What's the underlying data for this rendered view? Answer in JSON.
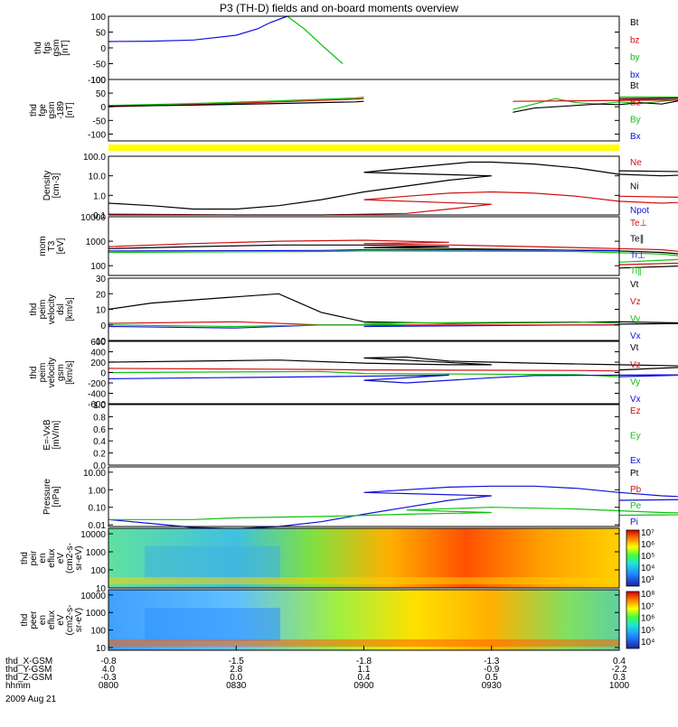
{
  "title": "P3 (TH-D) fields and on-board moments overview",
  "colors": {
    "black": "#000000",
    "red": "#d01010",
    "green": "#10c010",
    "blue": "#1010e0",
    "yellow": "#ffff00"
  },
  "chart_data": [
    {
      "type": "line",
      "id": "fgs",
      "ylabel": [
        "thd",
        "fgs",
        "gsm",
        "[nT]"
      ],
      "ylim": [
        -100,
        100
      ],
      "yticks": [
        "100",
        "50",
        "0",
        "-50",
        "-100"
      ],
      "legend": [
        {
          "label": "Bt",
          "color": "#000000"
        },
        {
          "label": "bz",
          "color": "#d01010"
        },
        {
          "label": "by",
          "color": "#10c010"
        },
        {
          "label": "bx",
          "color": "#1010e0"
        }
      ],
      "series": [
        {
          "color": "#1010e0",
          "x": [
            800,
            810,
            820,
            830,
            835,
            838,
            842
          ],
          "y": [
            20,
            21,
            25,
            40,
            60,
            80,
            100
          ]
        },
        {
          "color": "#10c010",
          "x": [
            842,
            846,
            850,
            855
          ],
          "y": [
            100,
            60,
            10,
            -50
          ]
        }
      ]
    },
    {
      "type": "line",
      "id": "fge",
      "ylabel": [
        "thd",
        "fge",
        "gsm",
        "-189",
        "[nT]"
      ],
      "ylim": [
        -125,
        100
      ],
      "yticks": [
        "100",
        "50",
        "0",
        "-50",
        "-100"
      ],
      "legend": [
        {
          "label": "Bt",
          "color": "#000000"
        },
        {
          "label": "Bz",
          "color": "#d01010"
        },
        {
          "label": "By",
          "color": "#10c010"
        },
        {
          "label": "Bx",
          "color": "#1010e0"
        }
      ],
      "series": [
        {
          "color": "#10c010",
          "x": [
            800,
            820,
            840,
            858,
            860
          ],
          "y": [
            5,
            12,
            22,
            32,
            35
          ]
        },
        {
          "color": "#d01010",
          "x": [
            800,
            820,
            840,
            858,
            860
          ],
          "y": [
            0,
            8,
            18,
            28,
            30
          ]
        },
        {
          "color": "#000000",
          "x": [
            800,
            820,
            840,
            858,
            860
          ],
          "y": [
            2,
            6,
            12,
            18,
            20
          ]
        },
        {
          "color": "#10c010",
          "x": [
            935,
            940,
            945,
            950,
            955,
            960,
            965,
            970,
            975,
            980,
            985,
            990,
            995,
            1000
          ],
          "y": [
            -10,
            10,
            30,
            15,
            10,
            18,
            12,
            20,
            28,
            40,
            30,
            38,
            35,
            36
          ]
        },
        {
          "color": "#000000",
          "x": [
            935,
            940,
            945,
            950,
            955,
            960,
            965,
            970,
            975,
            980,
            985,
            990,
            995,
            1000
          ],
          "y": [
            -20,
            -5,
            0,
            5,
            10,
            8,
            15,
            10,
            25,
            18,
            30,
            40,
            35,
            30
          ]
        },
        {
          "color": "#d01010",
          "x": [
            935,
            950,
            965,
            980,
            1000
          ],
          "y": [
            20,
            22,
            24,
            26,
            28
          ]
        }
      ]
    },
    {
      "type": "line",
      "id": "density",
      "yscale": "log",
      "ylabel": [
        "Density",
        "[cm-3]"
      ],
      "ylim": [
        0.1,
        100
      ],
      "yticks": [
        "100.0",
        "10.0",
        "1.0",
        "0.1"
      ],
      "legend": [
        {
          "label": "Ne",
          "color": "#d01010"
        },
        {
          "label": "Ni",
          "color": "#000000"
        },
        {
          "label": "Npot",
          "color": "#1010e0"
        }
      ],
      "series": [
        {
          "color": "#000000",
          "x": [
            800,
            810,
            820,
            830,
            840,
            850,
            860,
            870,
            880,
            890,
            900,
            910,
            920,
            925,
            930,
            940,
            950,
            960,
            970,
            980,
            990,
            1000
          ],
          "y": [
            0.4,
            0.3,
            0.2,
            0.2,
            0.3,
            0.6,
            1.5,
            3,
            6,
            10,
            15,
            25,
            40,
            50,
            50,
            40,
            25,
            12,
            10,
            12,
            15,
            18
          ]
        },
        {
          "color": "#d01010",
          "x": [
            800,
            830,
            850,
            870,
            880,
            890,
            900,
            910,
            920,
            930,
            940,
            950,
            960,
            970,
            980,
            990,
            1000
          ],
          "y": [
            0.11,
            0.1,
            0.1,
            0.12,
            0.2,
            0.35,
            0.6,
            0.9,
            1.3,
            1.5,
            1.3,
            0.9,
            0.5,
            0.4,
            0.5,
            0.7,
            0.9
          ]
        }
      ]
    },
    {
      "type": "line",
      "id": "temp",
      "yscale": "log",
      "ylabel": [
        "mom",
        "T3",
        "[eV]"
      ],
      "ylim": [
        40,
        10000
      ],
      "yticks": [
        "10000",
        "1000",
        "100"
      ],
      "ytickvals": [
        10000,
        1000,
        100
      ],
      "legend": [
        {
          "label": "Te⊥",
          "color": "#d01010"
        },
        {
          "label": "Te∥",
          "color": "#000000"
        },
        {
          "label": "Ti⊥",
          "color": "#1010e0"
        },
        {
          "label": "Ti∥",
          "color": "#10c010"
        }
      ],
      "series": [
        {
          "color": "#d01010",
          "x": [
            800,
            820,
            840,
            860,
            880,
            900,
            920,
            940,
            960,
            970,
            980,
            990,
            1000
          ],
          "y": [
            600,
            800,
            1000,
            1100,
            900,
            800,
            700,
            600,
            500,
            450,
            300,
            150,
            110
          ]
        },
        {
          "color": "#000000",
          "x": [
            800,
            820,
            840,
            860,
            880,
            900,
            920,
            940,
            960,
            970,
            980,
            990,
            1000
          ],
          "y": [
            500,
            600,
            700,
            700,
            600,
            550,
            500,
            450,
            400,
            350,
            250,
            120,
            80
          ]
        },
        {
          "color": "#1010e0",
          "x": [
            800,
            850,
            900,
            950,
            1000
          ],
          "y": [
            400,
            420,
            450,
            430,
            420
          ]
        },
        {
          "color": "#10c010",
          "x": [
            800,
            850,
            900,
            950,
            970,
            980,
            1000
          ],
          "y": [
            350,
            380,
            400,
            380,
            300,
            200,
            140
          ]
        }
      ]
    },
    {
      "type": "line",
      "id": "velocity_dsl",
      "ylabel": [
        "thd",
        "peim",
        "velocity",
        "dsl",
        "[km/s]"
      ],
      "ylim": [
        -10,
        30
      ],
      "yticks": [
        "30",
        "20",
        "10",
        "0",
        "-10"
      ],
      "legend": [
        {
          "label": "Vt",
          "color": "#000000"
        },
        {
          "label": "Vz",
          "color": "#d01010"
        },
        {
          "label": "Vy",
          "color": "#10c010"
        },
        {
          "label": "Vx",
          "color": "#1010e0"
        }
      ],
      "series": [
        {
          "color": "#000000",
          "x": [
            800,
            810,
            820,
            830,
            840,
            850,
            860,
            880,
            900,
            920,
            940,
            960,
            980,
            1000
          ],
          "y": [
            10,
            14,
            16,
            18,
            20,
            8,
            2,
            1,
            2,
            1,
            1.5,
            2,
            1,
            0.5
          ]
        },
        {
          "color": "#1010e0",
          "x": [
            800,
            830,
            850,
            870,
            900,
            950,
            1000
          ],
          "y": [
            -1,
            -2,
            0,
            0,
            -1,
            0,
            0
          ]
        },
        {
          "color": "#d01010",
          "x": [
            800,
            830,
            850,
            870,
            900,
            950,
            1000
          ],
          "y": [
            1,
            2,
            0,
            0,
            0,
            0,
            0
          ]
        },
        {
          "color": "#10c010",
          "x": [
            800,
            830,
            850,
            870,
            900,
            950,
            1000
          ],
          "y": [
            0,
            -1,
            0,
            0,
            1,
            2,
            1
          ]
        }
      ]
    },
    {
      "type": "line",
      "id": "velocity_gsm",
      "ylabel": [
        "thd",
        "peim",
        "velocity",
        "gsm",
        "[km/s]"
      ],
      "ylim": [
        -600,
        600
      ],
      "yticks": [
        "600",
        "400",
        "200",
        "0",
        "-200",
        "-400",
        "-600"
      ],
      "legend": [
        {
          "label": "Vt",
          "color": "#000000"
        },
        {
          "label": "Vz",
          "color": "#d01010"
        },
        {
          "label": "Vy",
          "color": "#10c010"
        },
        {
          "label": "Vx",
          "color": "#1010e0"
        }
      ],
      "series": [
        {
          "color": "#000000",
          "x": [
            800,
            820,
            840,
            860,
            880,
            890,
            900,
            910,
            920,
            930,
            940,
            960,
            980,
            1000
          ],
          "y": [
            200,
            220,
            240,
            180,
            150,
            150,
            280,
            300,
            220,
            200,
            180,
            150,
            120,
            50
          ]
        },
        {
          "color": "#d01010",
          "x": [
            800,
            850,
            900,
            950,
            1000
          ],
          "y": [
            80,
            60,
            50,
            40,
            30
          ]
        },
        {
          "color": "#10c010",
          "x": [
            800,
            850,
            900,
            950,
            1000
          ],
          "y": [
            0,
            20,
            -20,
            -40,
            -80
          ]
        },
        {
          "color": "#1010e0",
          "x": [
            800,
            850,
            880,
            900,
            910,
            920,
            930,
            940,
            960,
            980,
            1000
          ],
          "y": [
            -120,
            -80,
            -50,
            -150,
            -200,
            -150,
            -100,
            -60,
            -50,
            -40,
            -80
          ]
        }
      ]
    },
    {
      "type": "line",
      "id": "efield",
      "ylabel": [
        "E=-VxB",
        "[mV/m]"
      ],
      "ylim": [
        0,
        1
      ],
      "yticks": [
        "1.0",
        "0.8",
        "0.6",
        "0.4",
        "0.2",
        "0.0"
      ],
      "legend": [
        {
          "label": "Ez",
          "color": "#d01010"
        },
        {
          "label": "Ey",
          "color": "#10c010"
        },
        {
          "label": "Ex",
          "color": "#1010e0"
        }
      ],
      "series": []
    },
    {
      "type": "line",
      "id": "pressure",
      "yscale": "log",
      "ylabel": [
        "Pressure",
        "[nPa]"
      ],
      "ylim": [
        0.008,
        20
      ],
      "yticks": [
        "10.00",
        "1.00",
        "0.10",
        "0.01"
      ],
      "ytickvals": [
        10,
        1,
        0.1,
        0.01
      ],
      "legend": [
        {
          "label": "Pt",
          "color": "#000000"
        },
        {
          "label": "Pb",
          "color": "#d01010"
        },
        {
          "label": "Pe",
          "color": "#10c010"
        },
        {
          "label": "Pi",
          "color": "#1010e0"
        }
      ],
      "series": [
        {
          "color": "#1010e0",
          "x": [
            800,
            810,
            820,
            830,
            840,
            850,
            860,
            870,
            880,
            890,
            900,
            910,
            920,
            930,
            940,
            950,
            960,
            970,
            980,
            990,
            1000
          ],
          "y": [
            0.02,
            0.012,
            0.007,
            0.006,
            0.008,
            0.015,
            0.04,
            0.1,
            0.25,
            0.45,
            0.7,
            1.0,
            1.4,
            1.6,
            1.6,
            1.2,
            0.7,
            0.45,
            0.35,
            0.3,
            0.25
          ]
        },
        {
          "color": "#10c010",
          "x": [
            800,
            810,
            820,
            830,
            850,
            870,
            890,
            910,
            930,
            950,
            970,
            990,
            1000
          ],
          "y": [
            0.02,
            0.02,
            0.02,
            0.025,
            0.03,
            0.04,
            0.05,
            0.07,
            0.1,
            0.08,
            0.05,
            0.04,
            0.035
          ]
        }
      ]
    },
    {
      "type": "heatmap",
      "id": "peir",
      "ylabel": [
        "thd",
        "peir",
        "en",
        "eflux",
        "eV",
        "(cm2-s-",
        "sr-eV)"
      ],
      "yscale": "log",
      "ylim": [
        10,
        20000
      ],
      "yticks": [
        "10000",
        "1000",
        "100",
        "10"
      ],
      "ytickvals": [
        10000,
        1000,
        100,
        10
      ],
      "colorbar": {
        "labels": [
          "10⁷",
          "10⁶",
          "10⁵",
          "10⁴",
          "10³"
        ],
        "values": [
          7,
          6,
          5,
          4,
          3
        ]
      }
    },
    {
      "type": "heatmap",
      "id": "peer",
      "ylabel": [
        "thd",
        "peer",
        "en",
        "eflux",
        "eV",
        "(cm2-s-",
        "sr-eV)"
      ],
      "yscale": "log",
      "ylim": [
        7,
        20000
      ],
      "yticks": [
        "10000",
        "1000",
        "100",
        "10"
      ],
      "ytickvals": [
        10000,
        1000,
        100,
        10
      ],
      "colorbar": {
        "labels": [
          "10⁸",
          "10⁷",
          "10⁶",
          "10⁵",
          "10⁴"
        ],
        "values": [
          8,
          7,
          6,
          5,
          4
        ]
      }
    }
  ],
  "time_axis": {
    "rows": [
      {
        "label": "thd_X-GSM",
        "values": [
          "-0.8",
          "-1.5",
          "-1.8",
          "-1.3",
          "0.4"
        ]
      },
      {
        "label": "thd_Y-GSM",
        "values": [
          "4.0",
          "2.8",
          "1.1",
          "-0.9",
          "-2.2"
        ]
      },
      {
        "label": "thd_Z-GSM",
        "values": [
          "-0.3",
          "0.0",
          "0.4",
          "0.5",
          "0.3"
        ]
      },
      {
        "label": "hhmm",
        "values": [
          "0800",
          "0830",
          "0900",
          "0930",
          "1000"
        ]
      }
    ],
    "tick_times": [
      800,
      830,
      900,
      930,
      1000
    ],
    "date": "2009 Aug 21"
  }
}
